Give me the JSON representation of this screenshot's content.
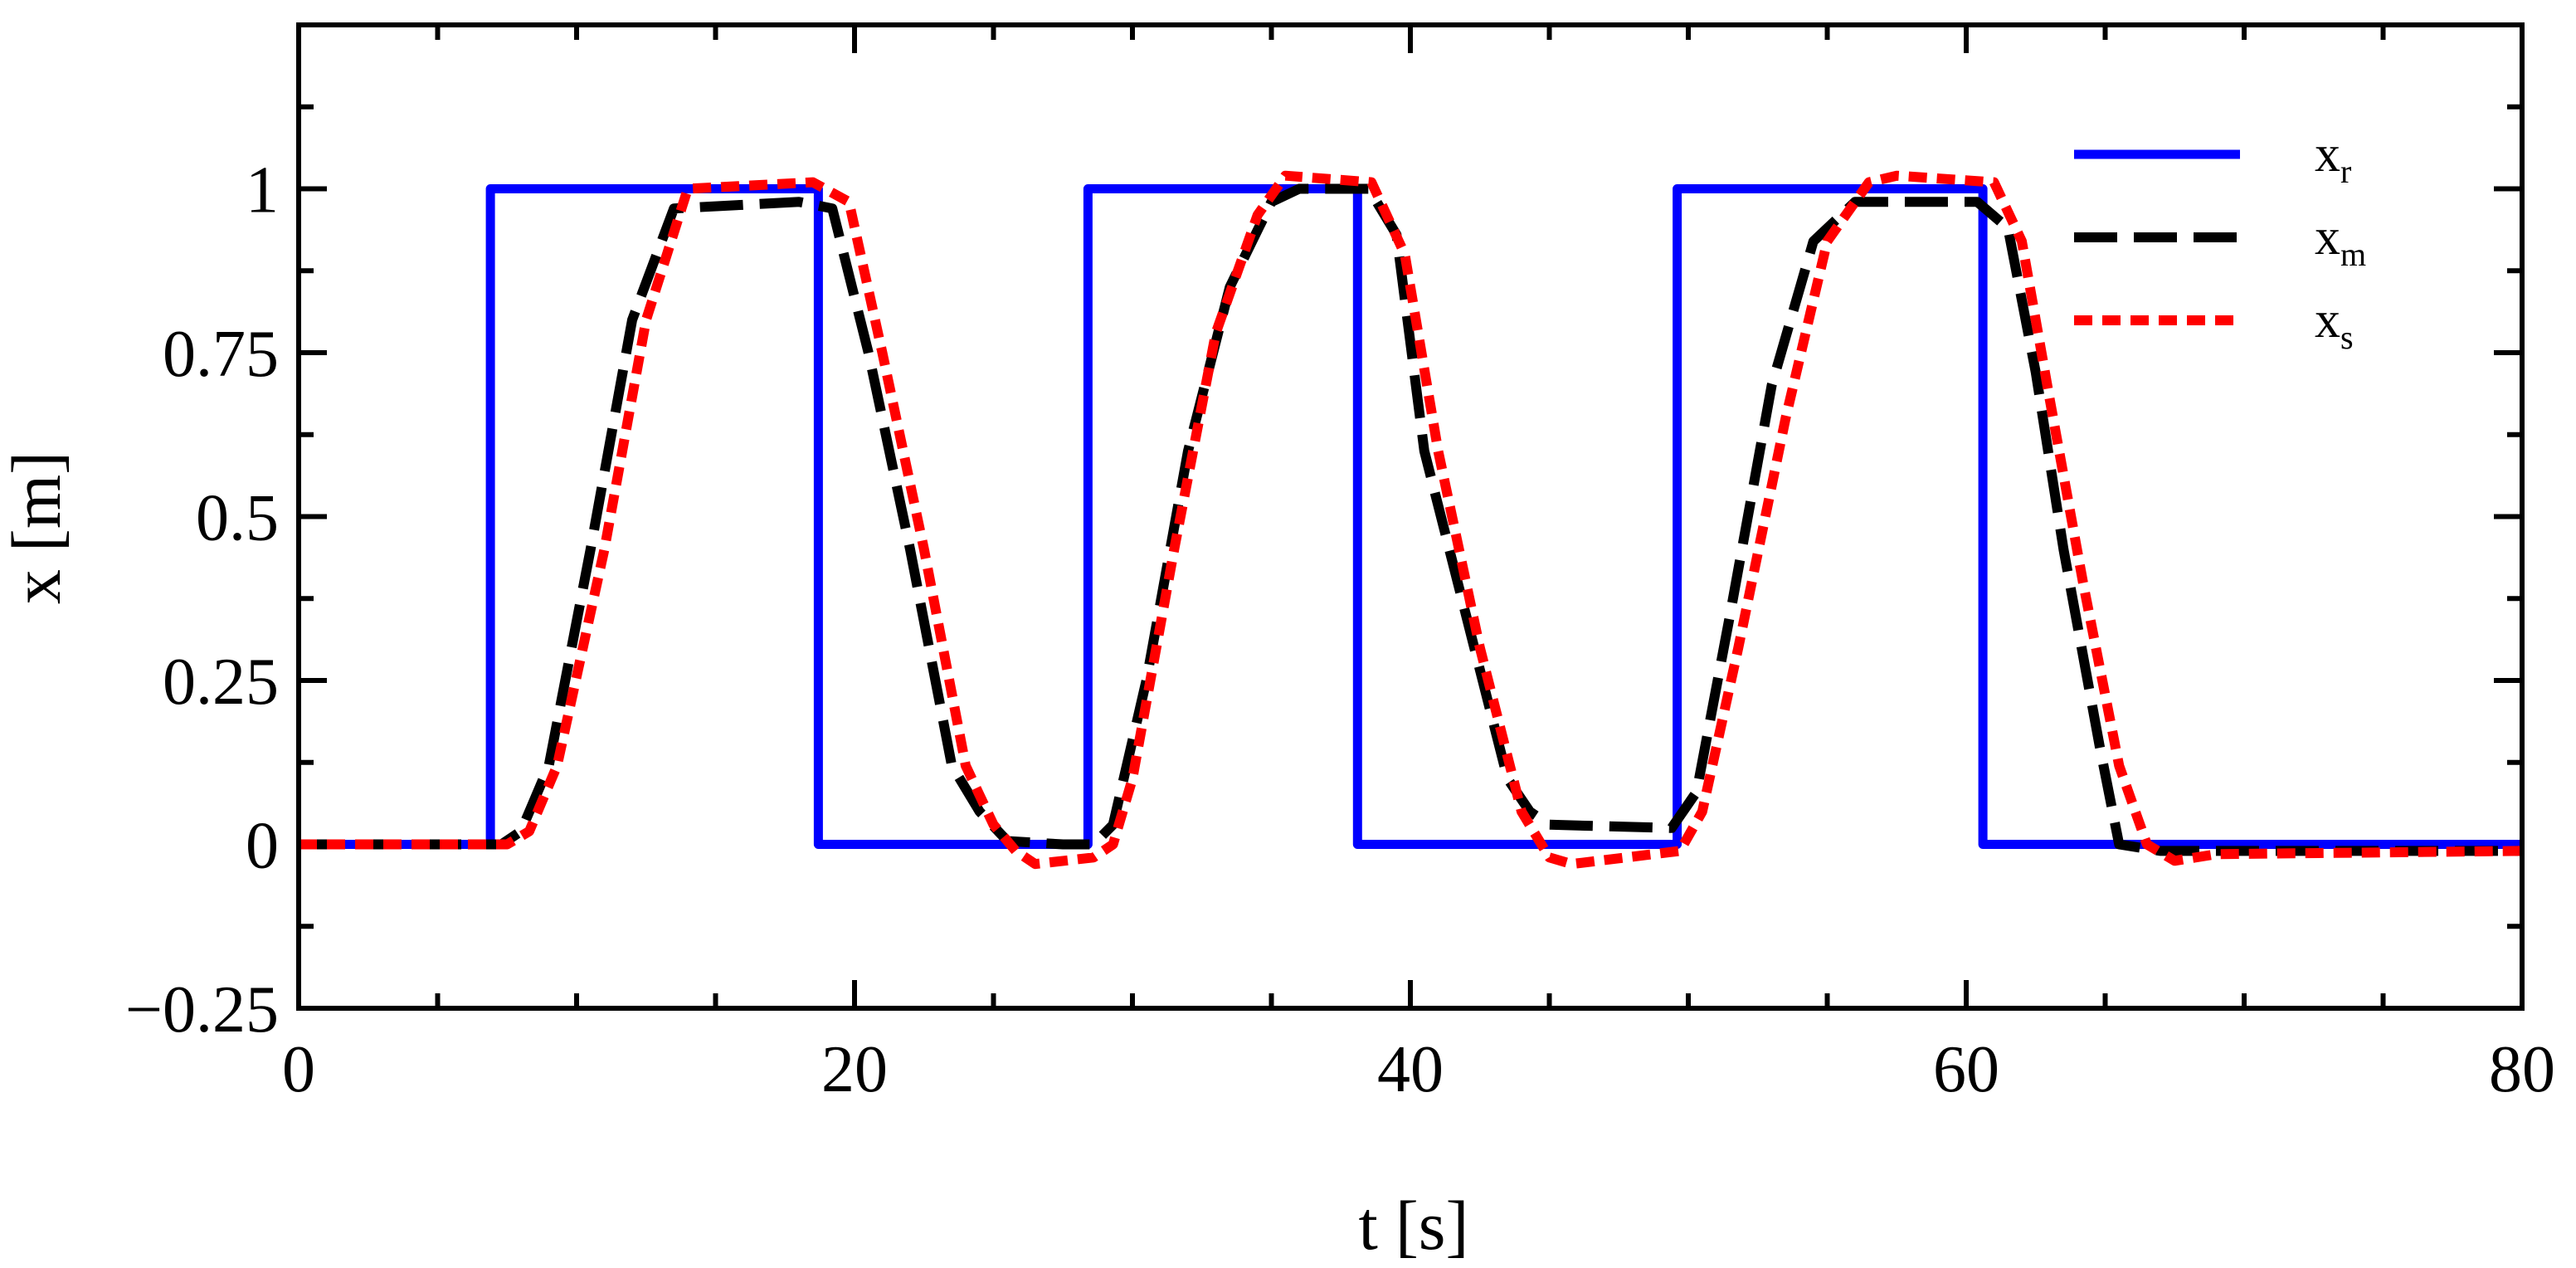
{
  "chart_data": {
    "type": "line",
    "xlabel": "t [s]",
    "ylabel": "x [m]",
    "xlim": [
      0,
      80
    ],
    "ylim": [
      -0.25,
      1.25
    ],
    "xticks": [
      0,
      20,
      40,
      60,
      80
    ],
    "xtick_labels": [
      "0",
      "20",
      "40",
      "60",
      "80"
    ],
    "yticks": [
      -0.25,
      0,
      0.25,
      0.5,
      0.75,
      1
    ],
    "ytick_labels": [
      "−0.25",
      "0",
      "0.25",
      "0.5",
      "0.75",
      "1"
    ],
    "grid": false,
    "legend": {
      "position": "top-right"
    },
    "series": [
      {
        "name": "x",
        "name_sub": "r",
        "color": "#0000ff",
        "style": "solid",
        "x": [
          0,
          6.9,
          6.9,
          18.7,
          18.7,
          28.4,
          28.4,
          38.1,
          38.1,
          49.6,
          49.6,
          60.6,
          60.6,
          80
        ],
        "y": [
          0,
          0,
          1,
          1,
          0,
          0,
          1,
          1,
          0,
          0,
          1,
          1,
          0,
          0
        ]
      },
      {
        "name": "x",
        "name_sub": "m",
        "color": "#000000",
        "style": "dashed",
        "x": [
          0,
          7.3,
          8.0,
          9.0,
          10.5,
          12.0,
          13.5,
          18.0,
          19.2,
          20.5,
          22.0,
          23.5,
          24.5,
          25.5,
          27.5,
          28.6,
          29.3,
          30.5,
          32.0,
          33.5,
          35.0,
          36.0,
          38.5,
          39.5,
          40.5,
          42.0,
          43.5,
          44.3,
          45.0,
          49.4,
          50.3,
          51.5,
          53.0,
          54.5,
          56.0,
          57.5,
          60.4,
          61.5,
          62.5,
          63.5,
          64.8,
          65.5,
          67.0,
          80
        ],
        "y": [
          0,
          0,
          0.02,
          0.12,
          0.45,
          0.8,
          0.97,
          0.98,
          0.97,
          0.75,
          0.45,
          0.12,
          0.05,
          0.005,
          0,
          0,
          0.03,
          0.25,
          0.6,
          0.85,
          0.98,
          1.0,
          1.0,
          0.93,
          0.6,
          0.35,
          0.1,
          0.05,
          0.03,
          0.025,
          0.08,
          0.35,
          0.7,
          0.92,
          0.98,
          0.98,
          0.98,
          0.94,
          0.72,
          0.45,
          0.15,
          0.0,
          -0.01,
          -0.01
        ]
      },
      {
        "name": "x",
        "name_sub": "s",
        "color": "#ff0000",
        "style": "dotted",
        "x": [
          0,
          7.5,
          8.3,
          9.3,
          11.0,
          12.5,
          14.0,
          18.5,
          19.8,
          21.0,
          22.5,
          24.0,
          25.0,
          25.8,
          26.5,
          28.6,
          29.3,
          30.0,
          31.5,
          33.0,
          34.5,
          35.5,
          38.6,
          39.8,
          41.0,
          42.5,
          44.0,
          45.0,
          45.8,
          49.7,
          50.5,
          51.8,
          53.5,
          55.0,
          56.5,
          57.5,
          61.0,
          62.0,
          63.0,
          64.2,
          65.5,
          66.5,
          67.5,
          69.0,
          80
        ],
        "y": [
          0,
          0,
          0.02,
          0.12,
          0.45,
          0.8,
          1.0,
          1.01,
          0.98,
          0.75,
          0.45,
          0.12,
          0.03,
          -0.01,
          -0.03,
          -0.02,
          0.0,
          0.1,
          0.45,
          0.78,
          0.96,
          1.02,
          1.01,
          0.9,
          0.6,
          0.3,
          0.05,
          -0.02,
          -0.03,
          -0.01,
          0.05,
          0.3,
          0.65,
          0.92,
          1.01,
          1.02,
          1.01,
          0.92,
          0.68,
          0.4,
          0.12,
          0.0,
          -0.025,
          -0.015,
          -0.01
        ]
      }
    ]
  }
}
